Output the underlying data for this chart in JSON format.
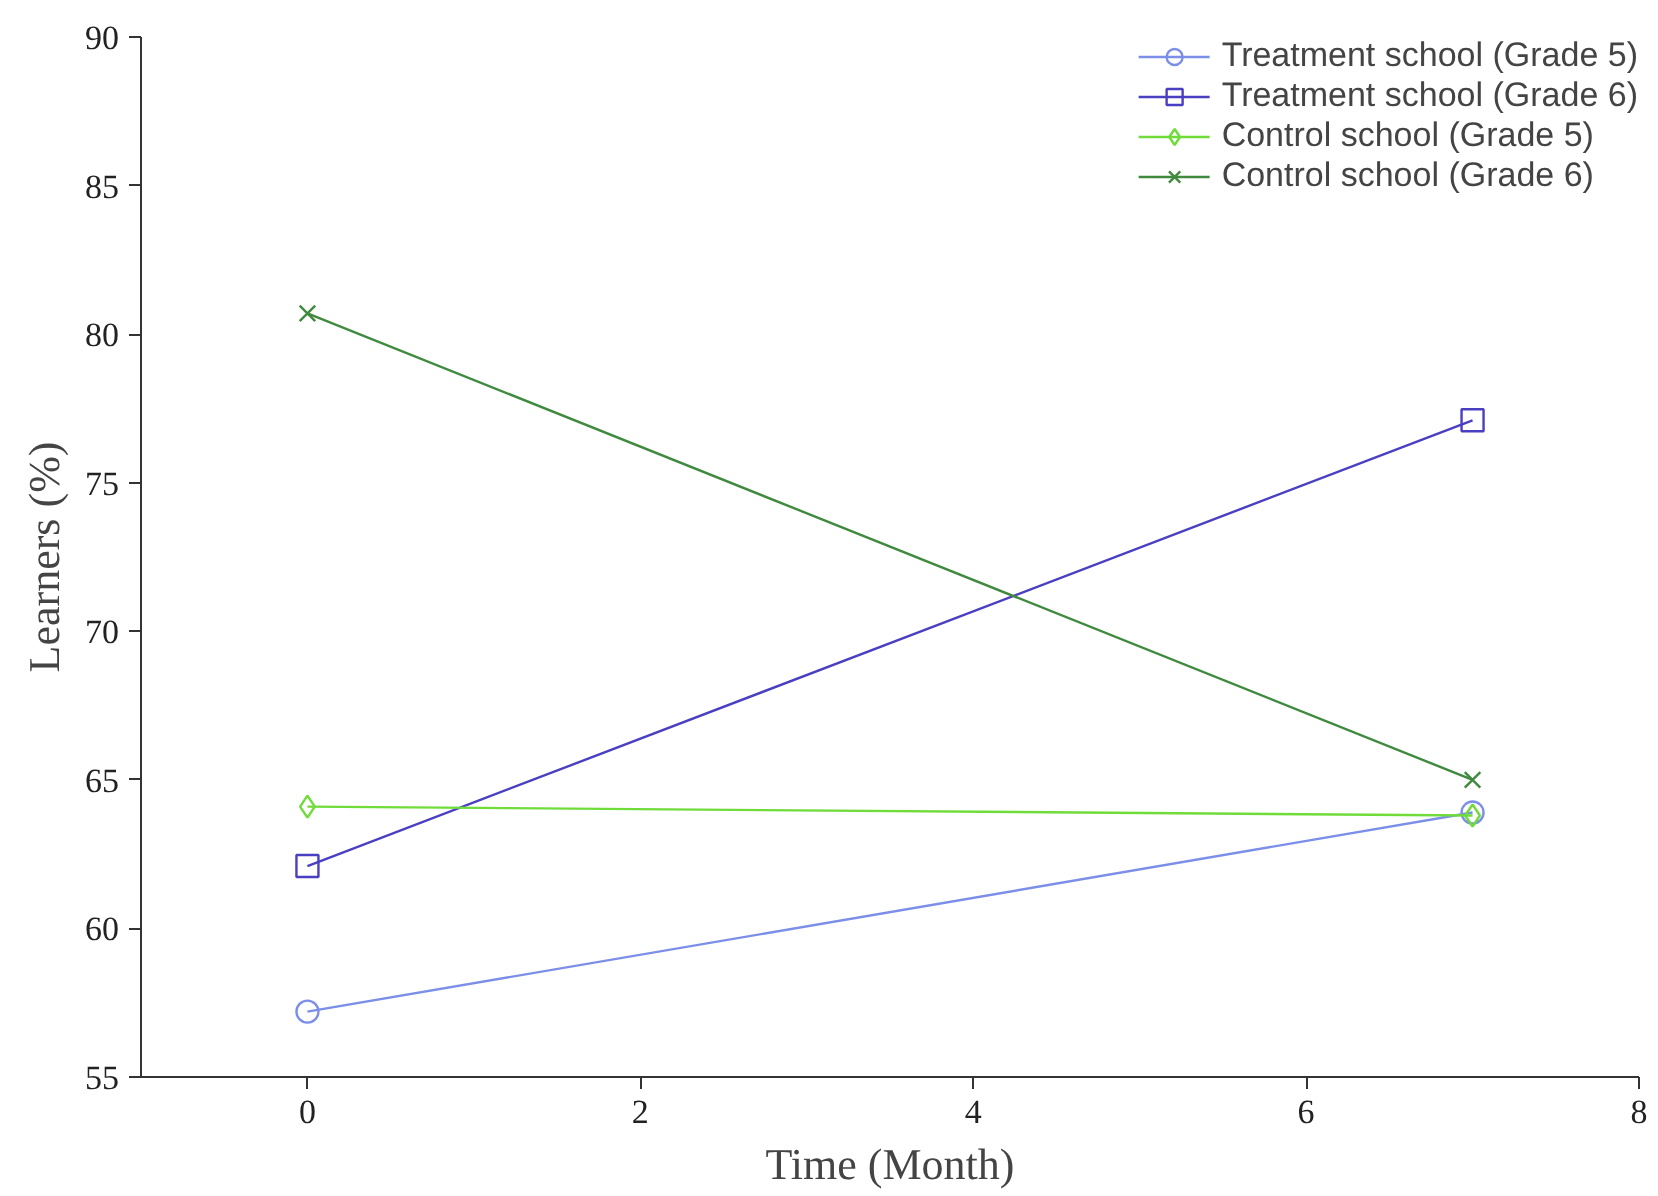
{
  "chart_data": {
    "type": "line",
    "xlabel": "Time (Month)",
    "ylabel": "Learners (%)",
    "x": [
      0,
      7
    ],
    "series": [
      {
        "name": "Treatment school (Grade 5)",
        "color": "#7b8ee8",
        "values": [
          57.2,
          63.9
        ],
        "marker": "circle"
      },
      {
        "name": "Treatment school (Grade 6)",
        "color": "#4a3fc0",
        "values": [
          62.1,
          77.1
        ],
        "marker": "square"
      },
      {
        "name": "Control school (Grade 5)",
        "color": "#6fdc3a",
        "values": [
          64.1,
          63.8
        ],
        "marker": "diamond"
      },
      {
        "name": "Control school (Grade 6)",
        "color": "#3f8a3f",
        "values": [
          80.7,
          65.0
        ],
        "marker": "cross"
      }
    ],
    "xlim": [
      -1,
      8
    ],
    "xticks": [
      0,
      2,
      4,
      6,
      8
    ],
    "ylim": [
      55,
      90
    ],
    "yticks": [
      55,
      60,
      65,
      70,
      75,
      80,
      85,
      90
    ],
    "grid": false,
    "legend": "top right",
    "line_style": "solid"
  }
}
